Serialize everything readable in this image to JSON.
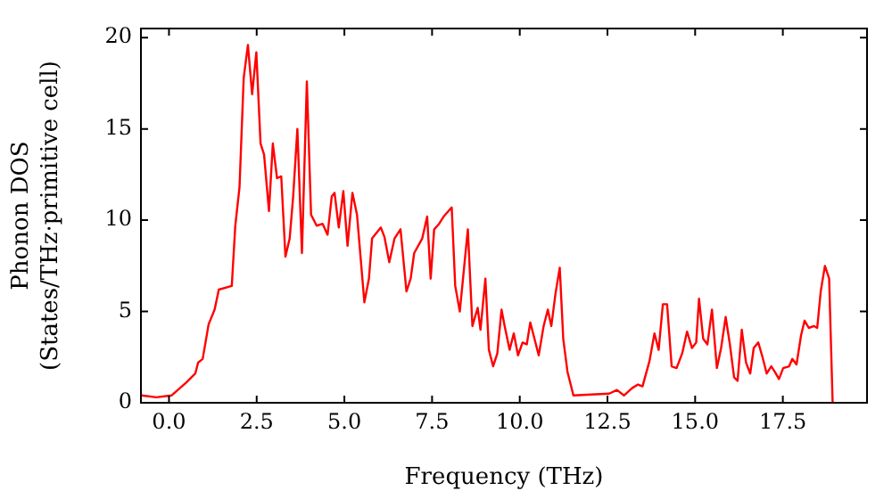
{
  "chart_data": {
    "type": "line",
    "xlabel": "Frequency (THz)",
    "ylabel": "Phonon DOS\n(States/THz·primitive cell)",
    "xlim": [
      -0.8,
      19.9
    ],
    "ylim": [
      0,
      20.5
    ],
    "xticks": [
      {
        "value": 0,
        "label": "0.0"
      },
      2.5,
      {
        "value": 5,
        "label": "5.0"
      },
      7.5,
      {
        "value": 10,
        "label": "10.0"
      },
      12.5,
      {
        "value": 15,
        "label": "15.0"
      },
      17.5
    ],
    "yticks": [
      0,
      5,
      10,
      15,
      20
    ],
    "grid": false,
    "legend": false,
    "marker": "none",
    "line_style": "solid",
    "series": [
      {
        "color": "#ff0000",
        "x": [
          -0.78,
          -0.36,
          0.07,
          0.49,
          0.75,
          0.83,
          0.96,
          1.13,
          1.3,
          1.42,
          1.79,
          1.89,
          2.01,
          2.13,
          2.25,
          2.37,
          2.49,
          2.61,
          2.71,
          2.85,
          2.96,
          3.08,
          3.2,
          3.32,
          3.44,
          3.54,
          3.66,
          3.79,
          3.93,
          4.05,
          4.21,
          4.38,
          4.52,
          4.64,
          4.72,
          4.84,
          4.97,
          5.09,
          5.23,
          5.36,
          5.57,
          5.7,
          5.79,
          6.04,
          6.14,
          6.28,
          6.43,
          6.6,
          6.77,
          6.89,
          6.99,
          7.22,
          7.36,
          7.46,
          7.56,
          7.7,
          7.83,
          8.06,
          8.16,
          8.29,
          8.52,
          8.65,
          8.8,
          8.88,
          9.02,
          9.12,
          9.24,
          9.36,
          9.48,
          9.57,
          9.71,
          9.83,
          9.95,
          10.08,
          10.2,
          10.3,
          10.42,
          10.54,
          10.68,
          10.8,
          10.9,
          11.02,
          11.14,
          11.24,
          11.36,
          11.53,
          12.55,
          12.77,
          12.97,
          13.2,
          13.37,
          13.5,
          13.7,
          13.84,
          13.96,
          14.08,
          14.2,
          14.33,
          14.47,
          14.63,
          14.77,
          14.91,
          15.03,
          15.11,
          15.23,
          15.35,
          15.48,
          15.62,
          15.74,
          15.87,
          15.99,
          16.11,
          16.21,
          16.33,
          16.45,
          16.57,
          16.67,
          16.8,
          16.92,
          17.04,
          17.17,
          17.27,
          17.39,
          17.51,
          17.68,
          17.77,
          17.89,
          18.02,
          18.12,
          18.24,
          18.39,
          18.48,
          18.58,
          18.7,
          18.82,
          18.92
        ],
        "values": [
          0.4,
          0.3,
          0.4,
          1.1,
          1.6,
          2.2,
          2.4,
          4.3,
          5.1,
          6.2,
          6.4,
          9.7,
          11.8,
          17.8,
          19.6,
          16.9,
          19.2,
          14.2,
          13.6,
          10.5,
          14.2,
          12.3,
          12.4,
          8.0,
          9.0,
          11.3,
          15.0,
          8.2,
          17.6,
          10.3,
          9.7,
          9.8,
          9.2,
          11.3,
          11.5,
          9.6,
          11.6,
          8.6,
          11.5,
          10.3,
          5.5,
          6.8,
          9.0,
          9.6,
          9.1,
          7.7,
          9.0,
          9.5,
          6.1,
          6.8,
          8.2,
          9.0,
          10.2,
          6.8,
          9.5,
          9.8,
          10.2,
          10.7,
          6.4,
          5.0,
          9.5,
          4.2,
          5.2,
          4.0,
          6.8,
          2.9,
          2.0,
          2.7,
          5.1,
          4.2,
          2.9,
          3.8,
          2.6,
          3.3,
          3.2,
          4.4,
          3.5,
          2.6,
          4.2,
          5.1,
          4.2,
          6.0,
          7.4,
          3.5,
          1.7,
          0.4,
          0.5,
          0.7,
          0.4,
          0.8,
          1.0,
          0.9,
          2.3,
          3.8,
          2.9,
          5.4,
          5.4,
          2.0,
          1.9,
          2.7,
          3.9,
          3.0,
          3.3,
          5.7,
          3.5,
          3.2,
          5.1,
          1.9,
          3.0,
          4.7,
          3.2,
          1.4,
          1.2,
          4.0,
          2.2,
          1.6,
          3.0,
          3.3,
          2.5,
          1.6,
          2.0,
          1.7,
          1.3,
          1.9,
          2.0,
          2.4,
          2.1,
          3.7,
          4.5,
          4.1,
          4.2,
          4.1,
          6.1,
          7.5,
          6.8,
          0
        ]
      }
    ]
  }
}
